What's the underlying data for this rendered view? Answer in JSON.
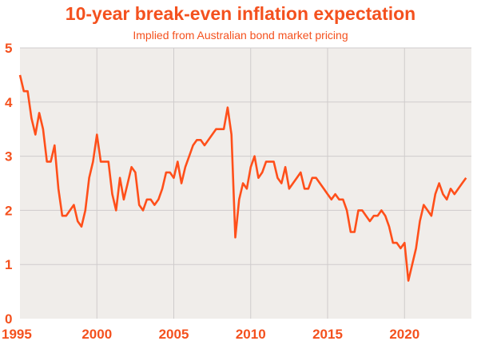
{
  "chart_data": {
    "type": "line",
    "title": "10-year break-even inflation expectation",
    "subtitle": "Implied from Australian bond market pricing",
    "xlabel": "",
    "ylabel": "",
    "xlim": [
      1995,
      2024.35
    ],
    "ylim": [
      0,
      5
    ],
    "grid": true,
    "x_ticks": [
      "1995",
      "2000",
      "2005",
      "2010",
      "2015",
      "2020"
    ],
    "y_ticks": [
      "0",
      "1",
      "2",
      "3",
      "4",
      "5"
    ],
    "colors": {
      "line": "#ff4f1a",
      "text": "#f4511e",
      "plot_bg": "#f0edea",
      "grid": "#cfcccc"
    },
    "series": [
      {
        "name": "10-year break-even inflation",
        "x_start": 1995,
        "x_step": 0.25,
        "values": [
          4.5,
          4.2,
          4.2,
          3.7,
          3.4,
          3.8,
          3.5,
          2.9,
          2.9,
          3.2,
          2.4,
          1.9,
          1.9,
          2.0,
          2.1,
          1.8,
          1.7,
          2.0,
          2.6,
          2.9,
          3.4,
          2.9,
          2.9,
          2.9,
          2.3,
          2.0,
          2.6,
          2.2,
          2.5,
          2.8,
          2.7,
          2.1,
          2.0,
          2.2,
          2.2,
          2.1,
          2.2,
          2.4,
          2.7,
          2.7,
          2.6,
          2.9,
          2.5,
          2.8,
          3.0,
          3.2,
          3.3,
          3.3,
          3.2,
          3.3,
          3.4,
          3.5,
          3.5,
          3.5,
          3.9,
          3.4,
          1.5,
          2.2,
          2.5,
          2.4,
          2.8,
          3.0,
          2.6,
          2.7,
          2.9,
          2.9,
          2.9,
          2.6,
          2.5,
          2.8,
          2.4,
          2.5,
          2.6,
          2.7,
          2.4,
          2.4,
          2.6,
          2.6,
          2.5,
          2.4,
          2.3,
          2.2,
          2.3,
          2.2,
          2.2,
          2.0,
          1.6,
          1.6,
          2.0,
          2.0,
          1.9,
          1.8,
          1.9,
          1.9,
          2.0,
          1.9,
          1.7,
          1.4,
          1.4,
          1.3,
          1.4,
          0.7,
          1.0,
          1.3,
          1.8,
          2.1,
          2.0,
          1.9,
          2.3,
          2.5,
          2.3,
          2.2,
          2.4,
          2.3,
          2.4,
          2.5,
          2.6
        ]
      }
    ]
  }
}
